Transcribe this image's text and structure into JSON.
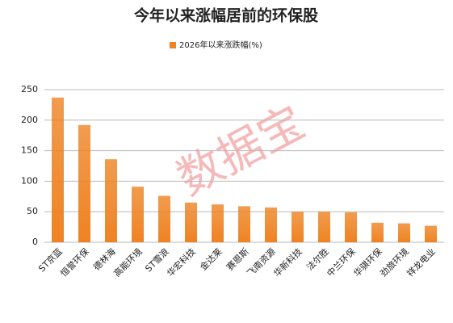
{
  "chart_data": {
    "type": "bar",
    "title": "今年以来涨幅居前的环保股",
    "legend": "2026年以来涨跌幅(%)",
    "watermark": "数据宝",
    "categories": [
      "ST京蓝",
      "恒誉环保",
      "德林海",
      "高能环境",
      "ST雪浪",
      "华宏科技",
      "金达莱",
      "赛恩斯",
      "飞南资源",
      "华新科技",
      "法尔胜",
      "中兰环保",
      "华骐环保",
      "劲旅环境",
      "祥龙电业"
    ],
    "values": [
      237,
      192,
      136,
      91,
      76,
      65,
      62,
      59,
      57,
      50,
      50,
      49,
      32,
      31,
      27
    ],
    "color": "#ee8323",
    "ylim": [
      0,
      250
    ],
    "yticks": [
      0,
      50,
      100,
      150,
      200,
      250
    ],
    "grid": true
  }
}
